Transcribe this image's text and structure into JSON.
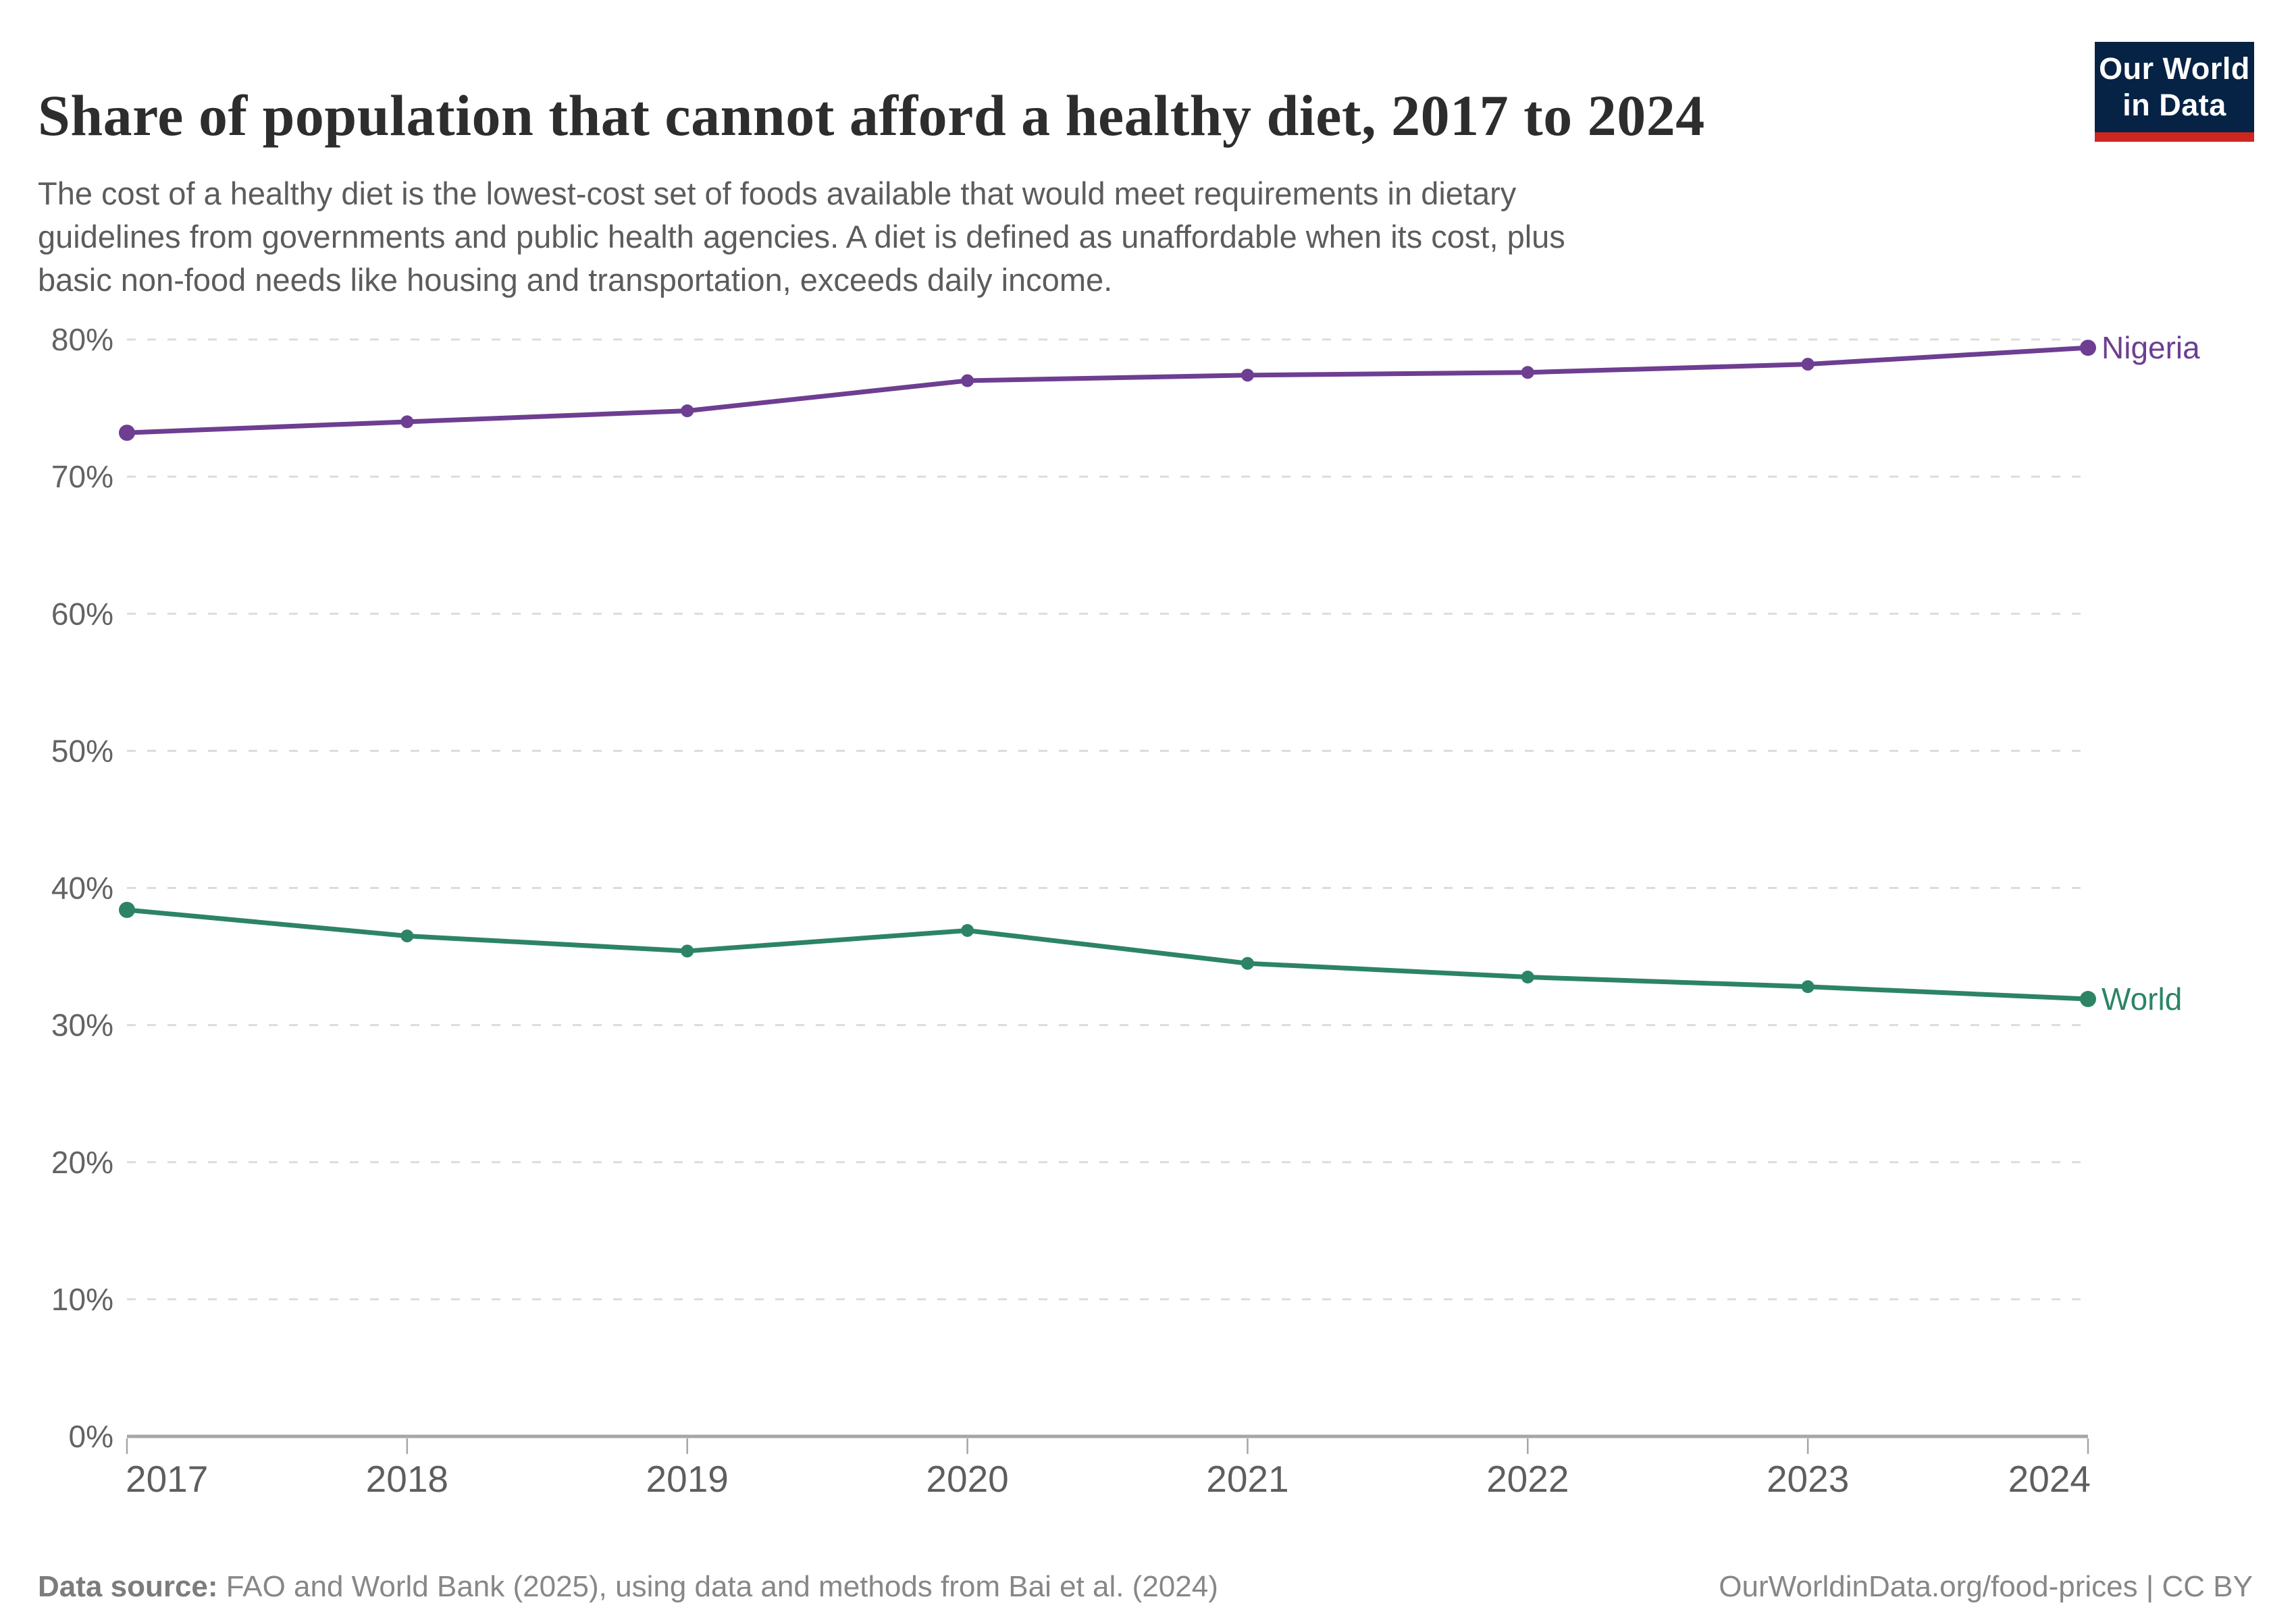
{
  "header": {
    "title": "Share of population that cannot afford a healthy diet, 2017 to 2024",
    "subtitle_lines": [
      "The cost of a healthy diet is the lowest-cost set of foods available that would meet requirements in dietary",
      "guidelines from governments and public health agencies. A diet is defined as unaffordable when its cost, plus",
      "basic non-food needs like housing and transportation, exceeds daily income."
    ],
    "logo": {
      "line1": "Our World",
      "line2": "in Data",
      "bg_color": "#062345",
      "accent_color": "#cd2621"
    }
  },
  "chart_data": {
    "type": "line",
    "title": "Share of population that cannot afford a healthy diet, 2017 to 2024",
    "x": [
      2017,
      2018,
      2019,
      2020,
      2021,
      2022,
      2023,
      2024
    ],
    "x_tick_labels": [
      "2017",
      "2018",
      "2019",
      "2020",
      "2021",
      "2022",
      "2023",
      "2024"
    ],
    "series": [
      {
        "name": "Nigeria",
        "color": "#6d3e91",
        "values": [
          73.2,
          74.0,
          74.8,
          77.0,
          77.4,
          77.6,
          78.2,
          79.4
        ]
      },
      {
        "name": "World",
        "color": "#2c8465",
        "values": [
          38.4,
          36.5,
          35.4,
          36.9,
          34.5,
          33.5,
          32.8,
          31.9
        ]
      }
    ],
    "ylim": [
      0,
      80
    ],
    "yticks": [
      0,
      10,
      20,
      30,
      40,
      50,
      60,
      70,
      80
    ],
    "ytick_suffix": "%",
    "grid": "horizontal-dashed",
    "legend_position": "line-end-labels",
    "grid_color": "#dcdcdc",
    "axis_color": "#a6a6a6",
    "tick_label_color": "#636363"
  },
  "footer": {
    "source_label": "Data source:",
    "source_text": " FAO and World Bank (2025), using data and methods from Bai et al. (2024)",
    "link_text": "OurWorldinData.org/food-prices | CC BY"
  }
}
